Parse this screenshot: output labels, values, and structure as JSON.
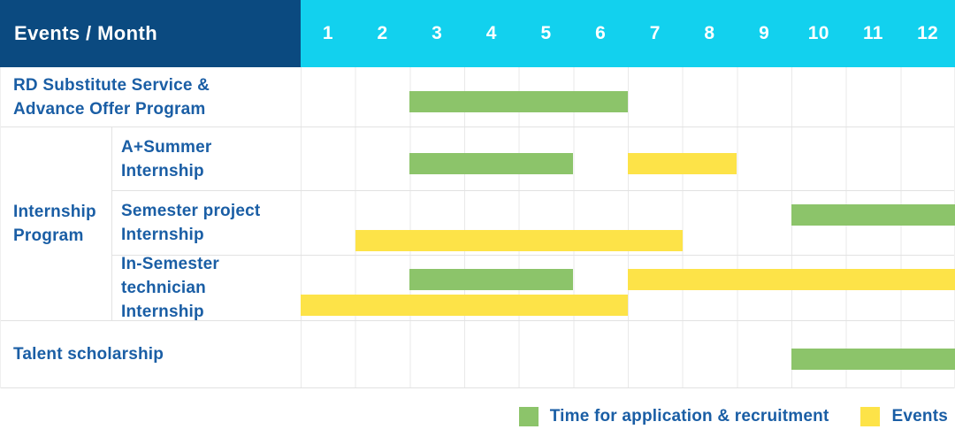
{
  "colors": {
    "navy_header_bg": "#0B4A80",
    "cyan_months_bg": "#12D1EE",
    "label_text": "#1A5EA5",
    "recruitment": "#8CC46A",
    "event": "#FDE348",
    "grid_line": "#E9E9E9",
    "row_line": "#E2E2E2",
    "header_text": "#FFFFFF"
  },
  "header": {
    "title": "Events / Month",
    "months": [
      "1",
      "2",
      "3",
      "4",
      "5",
      "6",
      "7",
      "8",
      "9",
      "10",
      "11",
      "12"
    ]
  },
  "group_label": {
    "key": "internship-program",
    "lines": [
      "Internship",
      "Program"
    ]
  },
  "chart_data": {
    "type": "bar",
    "subtype": "gantt-timeline",
    "title": "Events / Month",
    "x_axis": {
      "label": "Month",
      "range": [
        1,
        12
      ],
      "ticks": [
        "1",
        "2",
        "3",
        "4",
        "5",
        "6",
        "7",
        "8",
        "9",
        "10",
        "11",
        "12"
      ]
    },
    "grid": true,
    "legend_position": "bottom-right",
    "series_legend": [
      {
        "key": "recruitment",
        "label": "Time for application & recruitment",
        "color": "#8CC46A"
      },
      {
        "key": "event",
        "label": "Events",
        "color": "#FDE348"
      }
    ],
    "rows": [
      {
        "key": "rd-substitute-service-advance-offer-program",
        "label_lines": [
          "RD Substitute Service &",
          "Advance Offer Program"
        ],
        "group": null,
        "lanes": [
          [
            {
              "series": "recruitment",
              "start_month": 3,
              "end_month": 6
            }
          ]
        ]
      },
      {
        "key": "a-plus-summer-internship",
        "label_lines": [
          "A+Summer",
          "Internship"
        ],
        "group": "internship-program",
        "lanes": [
          [
            {
              "series": "recruitment",
              "start_month": 3,
              "end_month": 5
            },
            {
              "series": "event",
              "start_month": 7,
              "end_month": 8
            }
          ]
        ]
      },
      {
        "key": "semester-project-internship",
        "label_lines": [
          "Semester project",
          "Internship"
        ],
        "group": "internship-program",
        "lanes": [
          [
            {
              "series": "recruitment",
              "start_month": 10,
              "end_month": 12
            }
          ],
          [
            {
              "series": "event",
              "start_month": 2,
              "end_month": 7
            }
          ]
        ]
      },
      {
        "key": "in-semester-technician-internship",
        "label_lines": [
          "In-Semester",
          "technician Internship"
        ],
        "group": "internship-program",
        "lanes": [
          [
            {
              "series": "recruitment",
              "start_month": 3,
              "end_month": 5
            },
            {
              "series": "event",
              "start_month": 7,
              "end_month": 12
            }
          ],
          [
            {
              "series": "event",
              "start_month": 1,
              "end_month": 6
            }
          ]
        ]
      },
      {
        "key": "talent-scholarship",
        "label_lines": [
          "Talent scholarship"
        ],
        "group": null,
        "lanes": [
          [
            {
              "series": "recruitment",
              "start_month": 10,
              "end_month": 12
            }
          ]
        ]
      }
    ]
  },
  "legend": {
    "recruitment_label": "Time for application & recruitment",
    "events_label": "Events"
  }
}
